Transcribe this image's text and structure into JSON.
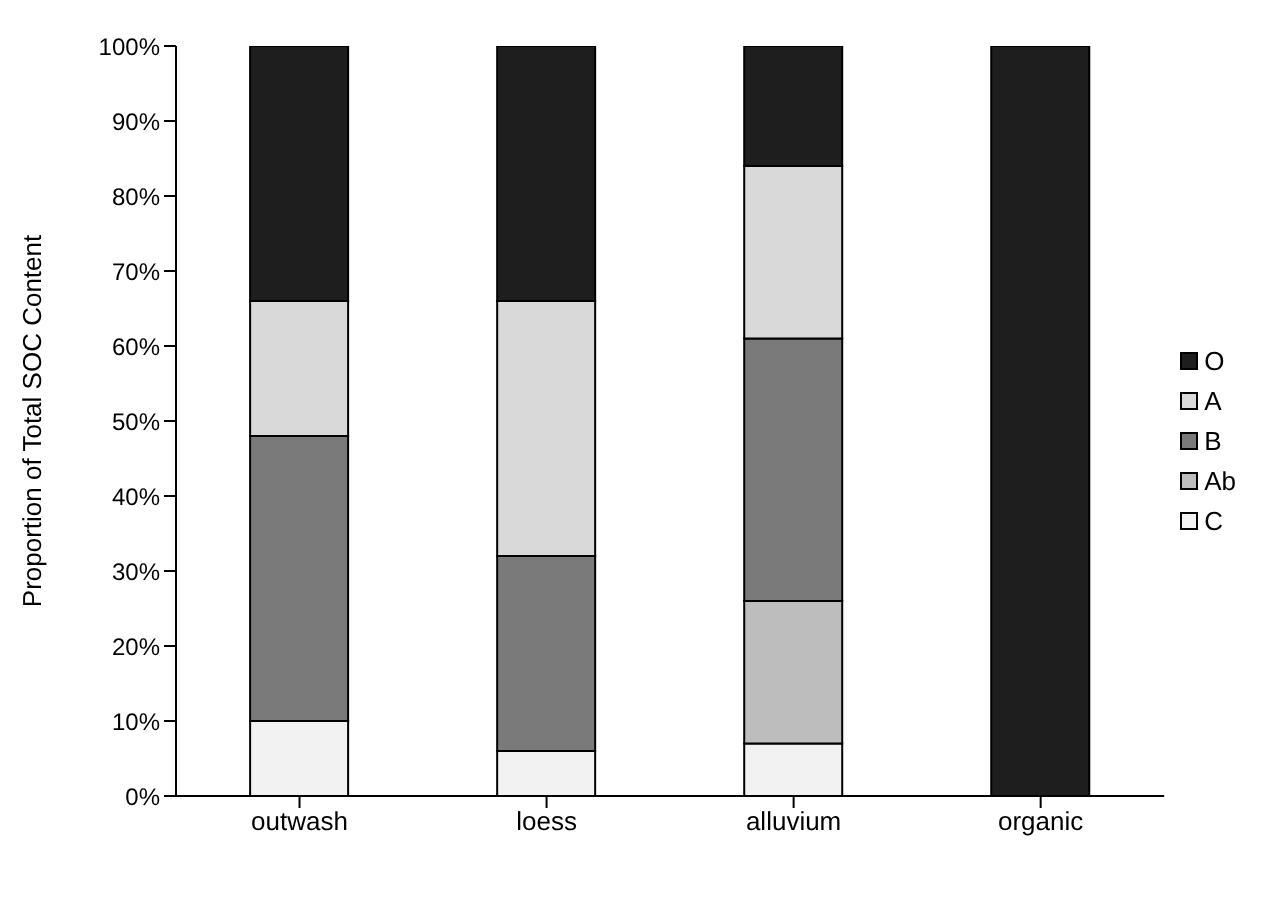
{
  "chart_data": {
    "type": "bar",
    "stacked": true,
    "ylabel": "Proportion of Total SOC Content",
    "categories": [
      "outwash",
      "loess",
      "alluvium",
      "organic"
    ],
    "series": [
      {
        "name": "C",
        "color": "#f2f2f2",
        "values": [
          10,
          6,
          7,
          0
        ]
      },
      {
        "name": "Ab",
        "color": "#bdbdbd",
        "values": [
          0,
          0,
          19,
          0
        ]
      },
      {
        "name": "B",
        "color": "#7a7a7a",
        "values": [
          38,
          26,
          35,
          0
        ]
      },
      {
        "name": "A",
        "color": "#d9d9d9",
        "values": [
          18,
          34,
          23,
          0
        ]
      },
      {
        "name": "O",
        "color": "#1e1e1e",
        "values": [
          34,
          34,
          16,
          100
        ]
      }
    ],
    "ylim": [
      0,
      100
    ],
    "yticks": [
      {
        "value": 0,
        "label": "0%"
      },
      {
        "value": 10,
        "label": "10%"
      },
      {
        "value": 20,
        "label": "20%"
      },
      {
        "value": 30,
        "label": "30%"
      },
      {
        "value": 40,
        "label": "40%"
      },
      {
        "value": 50,
        "label": "50%"
      },
      {
        "value": 60,
        "label": "60%"
      },
      {
        "value": 70,
        "label": "70%"
      },
      {
        "value": 80,
        "label": "80%"
      },
      {
        "value": 90,
        "label": "90%"
      },
      {
        "value": 100,
        "label": "100%"
      }
    ],
    "legend": "right"
  }
}
